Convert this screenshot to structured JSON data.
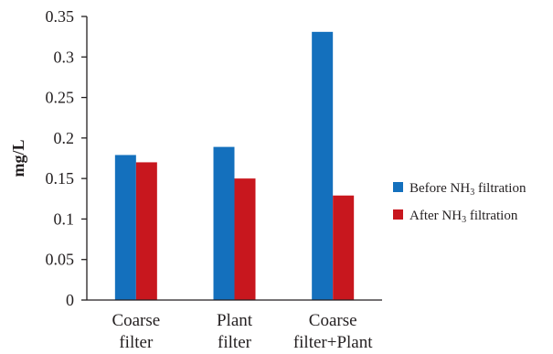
{
  "chart_data": {
    "type": "bar",
    "categories": [
      [
        "Coarse",
        "filter"
      ],
      [
        "Plant",
        "filter"
      ],
      [
        "Coarse",
        "filter+Plant"
      ]
    ],
    "series": [
      {
        "name": "Before NH₃ filtration",
        "legend_main": "Before NH",
        "legend_sub": "3",
        "legend_tail": " filtration",
        "color": "#1470bd",
        "values": [
          0.179,
          0.189,
          0.331
        ]
      },
      {
        "name": "After NH₃ filtration",
        "legend_main": "After NH",
        "legend_sub": "3",
        "legend_tail": " filtration",
        "color": "#c8171e",
        "values": [
          0.17,
          0.15,
          0.129
        ]
      }
    ],
    "yticks": [
      "0",
      "0.05",
      "0.1",
      "0.15",
      "0.2",
      "0.25",
      "0.3",
      "0.35"
    ],
    "ylabel": "mg/L",
    "xlabel": "",
    "title": "",
    "ylim": [
      0,
      0.35
    ],
    "grid": false,
    "legend_position": "right"
  }
}
